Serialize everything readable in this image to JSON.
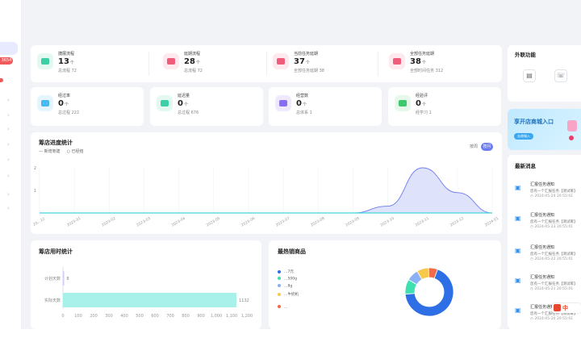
{
  "stats_row1": [
    {
      "title": "捷展流程",
      "value": "13",
      "unit": "个",
      "sub": "总流程 72",
      "icon_color": "#3ccfa6",
      "icon_bg": "#e4f8f2"
    },
    {
      "title": "延期流程",
      "value": "28",
      "unit": "个",
      "sub": "总流程 72",
      "icon_color": "#f05d7a",
      "icon_bg": "#fde9ee"
    },
    {
      "title": "当前任务延期",
      "value": "37",
      "unit": "个",
      "sub": "全部任务延期 38",
      "icon_color": "#f05d7a",
      "icon_bg": "#fde9ee"
    },
    {
      "title": "全部任务延期",
      "value": "38",
      "unit": "个",
      "sub": "全部时间任务 312",
      "icon_color": "#f05d7a",
      "icon_bg": "#fde9ee"
    }
  ],
  "stats_row2": [
    {
      "title": "经过率",
      "value": "0",
      "unit": "个",
      "sub": "总过程 222",
      "icon_color": "#48b9f0",
      "icon_bg": "#e5f5fd"
    },
    {
      "title": "延迟量",
      "value": "0",
      "unit": "个",
      "sub": "总过程 676",
      "icon_color": "#3ccfa6",
      "icon_bg": "#e4f8f2"
    },
    {
      "title": "经营数",
      "value": "0",
      "unit": "个",
      "sub": "总体系 1",
      "icon_color": "#8a6cf0",
      "icon_bg": "#eee9fd"
    },
    {
      "title": "经验评",
      "value": "0",
      "unit": "个",
      "sub": "经学习 1",
      "icon_color": "#3cc96a",
      "icon_bg": "#e5f8ea"
    }
  ],
  "chart1": {
    "title": "筹店进度统计",
    "legend": [
      "— 新增筹建",
      "○ 已经结"
    ],
    "toggle_week": "按周",
    "toggle_month": "按月",
    "chart_data": {
      "type": "area",
      "x": [
        "2022-12",
        "2023-01",
        "2023-02",
        "2023-03",
        "2023-04",
        "2023-05",
        "2023-06",
        "2023-07",
        "2023-08",
        "2023-09",
        "2023-10",
        "2023-11",
        "2023-12",
        "2024-01"
      ],
      "series": [
        {
          "values": [
            0,
            0,
            0,
            0,
            0,
            0,
            0,
            0,
            0,
            0,
            0.3,
            2,
            0.9,
            0
          ]
        }
      ],
      "y_ticks": [
        "2",
        "1"
      ],
      "ylim": [
        0,
        2
      ],
      "x_labels": [
        "20…12",
        "2023-01",
        "2023-02",
        "2023-03",
        "2023-04",
        "2023-05",
        "2023-06",
        "2023-07",
        "2023-08",
        "2023-09",
        "2023-10",
        "2023-11",
        "2023-12",
        "2024-01"
      ]
    }
  },
  "chart2": {
    "title": "筹店用时统计",
    "chart_data": {
      "type": "bar",
      "categories": [
        "计划天数",
        "实际天数"
      ],
      "values": [
        8,
        1132
      ],
      "value_labels": [
        "8",
        "1132"
      ],
      "xlim": [
        0,
        1200
      ],
      "x_ticks": [
        "0",
        "100",
        "200",
        "300",
        "400",
        "500",
        "600",
        "700",
        "800",
        "900",
        "1,000",
        "1,100",
        "1,200"
      ]
    }
  },
  "pie": {
    "title": "最热销商品",
    "legend": [
      {
        "label": "…7元",
        "color": "#2f6fe6"
      },
      {
        "label": "…500g",
        "color": "#3ee0b0"
      },
      {
        "label": "…8g",
        "color": "#8ab0f5"
      },
      {
        "label": "…牛奶机",
        "color": "#f7c94a"
      },
      {
        "label": "…",
        "color": "#f06b48"
      }
    ],
    "chart_data": {
      "type": "pie",
      "values": [
        68,
        10,
        8,
        8,
        6
      ],
      "colors": [
        "#2f6fe6",
        "#3ee0b0",
        "#8ab0f5",
        "#f7c94a",
        "#f06b48"
      ]
    }
  },
  "external": {
    "title": "外联功能"
  },
  "banner": {
    "title": "享开店商城入口",
    "button": "去商城入"
  },
  "news": {
    "title": "最新消息",
    "items": [
      {
        "title": "汇报任务通知",
        "desc": "您有一个汇报任务【测试筹】",
        "time": "◷ 2024-05-24 20:55:01"
      },
      {
        "title": "汇报任务通知",
        "desc": "您有一个汇报任务【测试筹】",
        "time": "◷ 2024-05-23 20:55:01"
      },
      {
        "title": "汇报任务通知",
        "desc": "您有一个汇报任务【测试筹】",
        "time": "◷ 2024-05-22 20:55:01"
      },
      {
        "title": "汇报任务通知",
        "desc": "您有一个汇报任务【测试筹】",
        "time": "◷ 2024-05-21 20:55:01"
      },
      {
        "title": "汇报任务通知",
        "desc": "您有一个汇报任务【测试筹】",
        "time": "◷ 2024-05-20 20:55:01"
      }
    ]
  },
  "sidebar": {
    "badge": "3654"
  },
  "ime": {
    "label": "中"
  }
}
